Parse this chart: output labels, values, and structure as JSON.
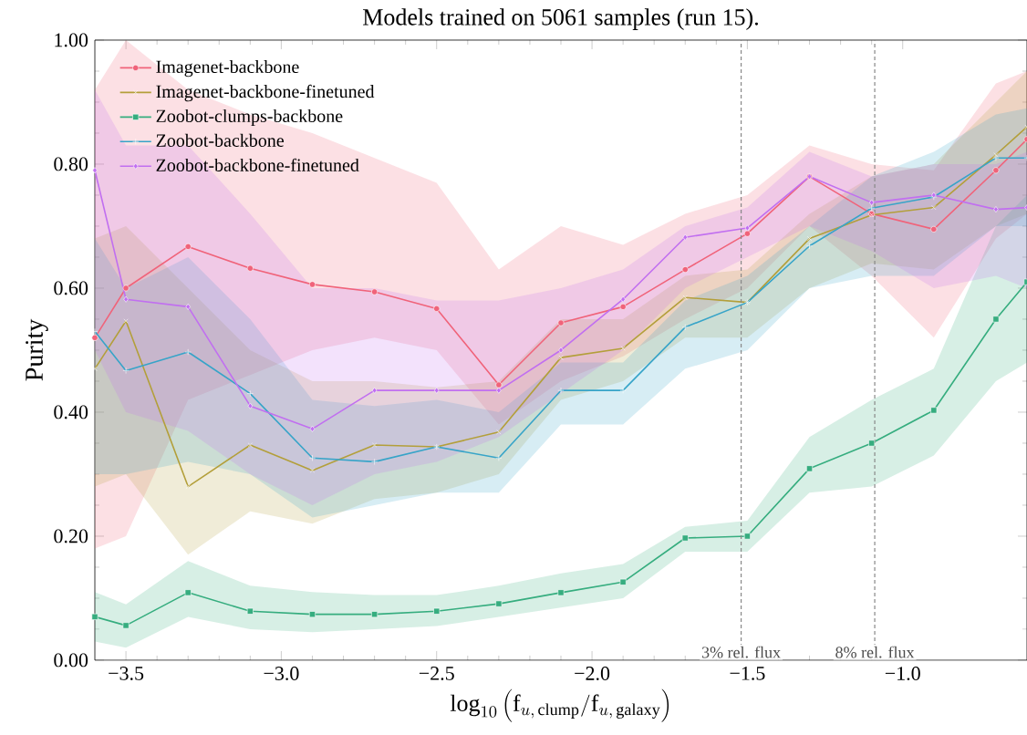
{
  "chart_data": {
    "type": "line",
    "title": "Models trained on 5061 samples (run 15).",
    "xlabel": "\\log_{10}\\left(\\mathrm{f}_{u,\\,\\mathrm{clump}}/\\mathrm{f}_{u,\\,\\mathrm{galaxy}}\\right)",
    "ylabel": "Purity",
    "x": [
      -3.6,
      -3.5,
      -3.3,
      -3.1,
      -2.9,
      -2.7,
      -2.5,
      -2.3,
      -2.1,
      -1.9,
      -1.7,
      -1.5,
      -1.3,
      -1.1,
      -0.9,
      -0.7,
      -0.6
    ],
    "series": [
      {
        "name": "Imagenet-backbone",
        "color": "#f0637a",
        "marker": "circle",
        "values": [
          0.52,
          0.6,
          0.667,
          0.632,
          0.606,
          0.594,
          0.567,
          0.444,
          0.544,
          0.57,
          0.63,
          0.688,
          0.78,
          0.72,
          0.695,
          0.79,
          0.84
        ],
        "lower": [
          0.18,
          0.2,
          0.42,
          0.46,
          0.5,
          0.52,
          0.5,
          0.38,
          0.45,
          0.49,
          0.55,
          0.6,
          0.7,
          0.62,
          0.52,
          0.68,
          0.72
        ],
        "upper": [
          0.92,
          1.0,
          0.92,
          0.88,
          0.85,
          0.81,
          0.77,
          0.63,
          0.7,
          0.67,
          0.72,
          0.75,
          0.83,
          0.8,
          0.79,
          0.93,
          0.95
        ]
      },
      {
        "name": "Imagenet-backbone-finetuned",
        "color": "#b39f3a",
        "marker": "cross",
        "values": [
          0.47,
          0.547,
          0.28,
          0.347,
          0.306,
          0.347,
          0.344,
          0.368,
          0.488,
          0.503,
          0.585,
          0.577,
          0.68,
          0.718,
          0.73,
          0.815,
          0.86
        ],
        "lower": [
          0.28,
          0.3,
          0.17,
          0.24,
          0.22,
          0.26,
          0.27,
          0.3,
          0.42,
          0.45,
          0.52,
          0.52,
          0.6,
          0.64,
          0.63,
          0.7,
          0.72
        ],
        "upper": [
          0.68,
          0.7,
          0.6,
          0.5,
          0.45,
          0.45,
          0.44,
          0.45,
          0.55,
          0.55,
          0.62,
          0.63,
          0.72,
          0.78,
          0.8,
          0.9,
          0.95
        ]
      },
      {
        "name": "Zoobot-clumps-backbone",
        "color": "#36ad7f",
        "marker": "square",
        "values": [
          0.07,
          0.056,
          0.109,
          0.079,
          0.074,
          0.074,
          0.079,
          0.091,
          0.109,
          0.126,
          0.197,
          0.2,
          0.309,
          0.35,
          0.403,
          0.55,
          0.61
        ],
        "lower": [
          0.03,
          0.02,
          0.07,
          0.05,
          0.045,
          0.05,
          0.055,
          0.07,
          0.085,
          0.1,
          0.175,
          0.175,
          0.27,
          0.28,
          0.33,
          0.45,
          0.48
        ],
        "upper": [
          0.11,
          0.09,
          0.16,
          0.12,
          0.11,
          0.105,
          0.105,
          0.12,
          0.14,
          0.155,
          0.215,
          0.225,
          0.36,
          0.42,
          0.47,
          0.7,
          0.75
        ]
      },
      {
        "name": "Zoobot-backbone",
        "color": "#37a4c8",
        "marker": "plus",
        "values": [
          0.53,
          0.467,
          0.497,
          0.43,
          0.326,
          0.32,
          0.344,
          0.326,
          0.435,
          0.435,
          0.537,
          0.577,
          0.668,
          0.729,
          0.747,
          0.81,
          0.81
        ],
        "lower": [
          0.3,
          0.3,
          0.32,
          0.3,
          0.23,
          0.25,
          0.27,
          0.27,
          0.38,
          0.38,
          0.47,
          0.5,
          0.6,
          0.62,
          0.62,
          0.7,
          0.7
        ],
        "upper": [
          0.68,
          0.6,
          0.65,
          0.55,
          0.42,
          0.41,
          0.42,
          0.4,
          0.48,
          0.48,
          0.58,
          0.62,
          0.7,
          0.78,
          0.82,
          0.88,
          0.89
        ]
      },
      {
        "name": "Zoobot-backbone-finetuned",
        "color": "#c16ff0",
        "marker": "diamond",
        "values": [
          0.79,
          0.582,
          0.57,
          0.41,
          0.373,
          0.435,
          0.435,
          0.435,
          0.5,
          0.582,
          0.682,
          0.697,
          0.78,
          0.738,
          0.75,
          0.727,
          0.73
        ],
        "lower": [
          0.5,
          0.4,
          0.37,
          0.3,
          0.25,
          0.3,
          0.32,
          0.36,
          0.43,
          0.5,
          0.6,
          0.65,
          0.7,
          0.66,
          0.6,
          0.62,
          0.6
        ],
        "upper": [
          0.92,
          0.83,
          0.83,
          0.72,
          0.6,
          0.6,
          0.58,
          0.58,
          0.6,
          0.63,
          0.7,
          0.73,
          0.82,
          0.78,
          0.8,
          0.8,
          0.82
        ]
      }
    ],
    "xlim": [
      -3.6,
      -0.6
    ],
    "ylim": [
      0,
      1
    ],
    "xticks": [
      {
        "value": -3.5,
        "label": "−3.5"
      },
      {
        "value": -3.0,
        "label": "−3.0"
      },
      {
        "value": -2.5,
        "label": "−2.5"
      },
      {
        "value": -2.0,
        "label": "−2.0"
      },
      {
        "value": -1.5,
        "label": "−1.5"
      },
      {
        "value": -1.0,
        "label": "−1.0"
      }
    ],
    "yticks": [
      {
        "value": 0,
        "label": "0.00"
      },
      {
        "value": 0.2,
        "label": "0.20"
      },
      {
        "value": 0.4,
        "label": "0.40"
      },
      {
        "value": 0.6,
        "label": "0.60"
      },
      {
        "value": 0.8,
        "label": "0.80"
      },
      {
        "value": 1.0,
        "label": "1.00"
      }
    ],
    "ref_lines": [
      {
        "axis": "x",
        "value": -1.52,
        "label": "3% rel. flux",
        "color": "#888888",
        "line_style": "dashed"
      },
      {
        "axis": "x",
        "value": -1.09,
        "label": "8% rel. flux",
        "color": "#888888",
        "line_style": "dashed"
      }
    ],
    "legend": "top left",
    "line_style": "solid",
    "grid": false
  }
}
